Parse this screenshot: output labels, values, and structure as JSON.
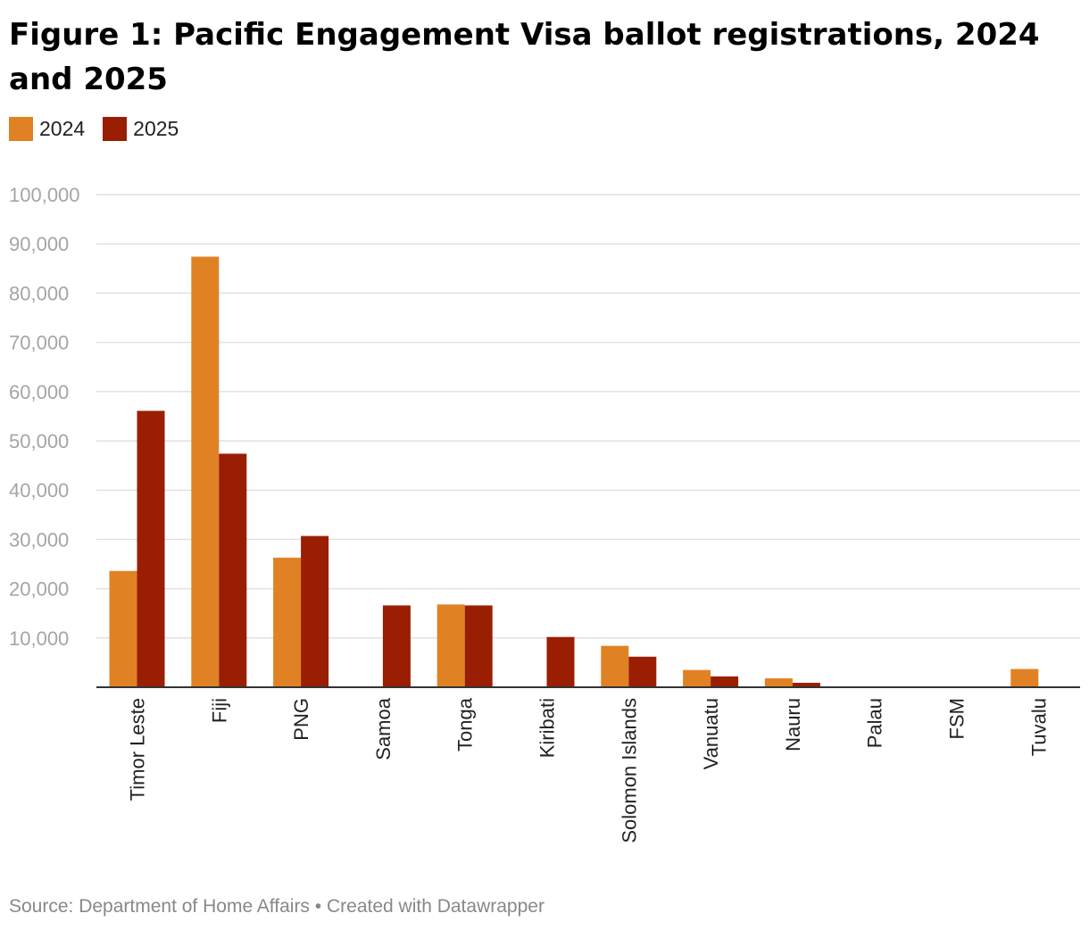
{
  "title": "Figure 1: Pacific Engagement Visa ballot registrations, 2024 and 2025",
  "legend": [
    {
      "label": "2024",
      "color": "#e08224"
    },
    {
      "label": "2025",
      "color": "#9a1e02"
    }
  ],
  "footer": {
    "source": "Source: Department of Home Affairs",
    "separator": "•",
    "credit": "Created with Datawrapper"
  },
  "chart_data": {
    "type": "bar",
    "title": "Figure 1: Pacific Engagement Visa ballot registrations, 2024 and 2025",
    "xlabel": "",
    "ylabel": "",
    "ylim": [
      0,
      100000
    ],
    "yticks": [
      10000,
      20000,
      30000,
      40000,
      50000,
      60000,
      70000,
      80000,
      90000,
      100000
    ],
    "ytick_labels": [
      "10,000",
      "20,000",
      "30,000",
      "40,000",
      "50,000",
      "60,000",
      "70,000",
      "80,000",
      "90,000",
      "100,000"
    ],
    "grid": true,
    "legend_position": "top-left",
    "categories": [
      "Timor Leste",
      "Fiji",
      "PNG",
      "Samoa",
      "Tonga",
      "Kiribati",
      "Solomon Islands",
      "Vanuatu",
      "Nauru",
      "Palau",
      "FSM",
      "Tuvalu"
    ],
    "series": [
      {
        "name": "2024",
        "color": "#e08224",
        "values": [
          23600,
          87400,
          26300,
          0,
          16800,
          0,
          8400,
          3500,
          1800,
          0,
          0,
          3700
        ]
      },
      {
        "name": "2025",
        "color": "#9a1e02",
        "values": [
          56100,
          47400,
          30700,
          16600,
          16600,
          10200,
          6200,
          2200,
          900,
          0,
          0,
          0
        ]
      }
    ]
  }
}
